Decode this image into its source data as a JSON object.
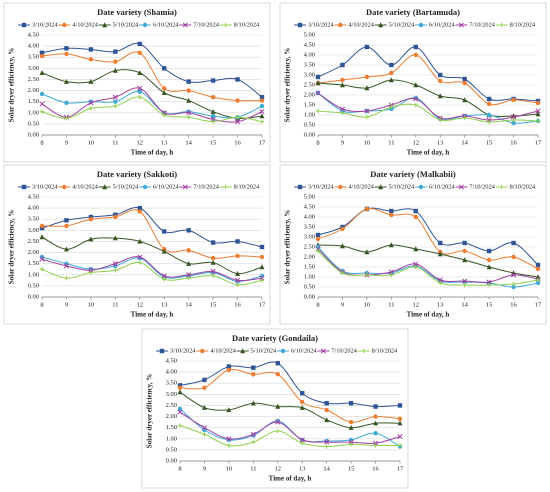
{
  "chart_data": [
    {
      "type": "line",
      "title": "Date variety (Shamia)",
      "x_label": "Time of day, h",
      "y_label": "Solar dryer efficiency, %",
      "x": [
        8,
        9,
        10,
        11,
        12,
        13,
        14,
        15,
        16,
        17
      ],
      "xlim": [
        8,
        17
      ],
      "xticks": [
        8,
        9,
        10,
        11,
        12,
        13,
        14,
        15,
        16,
        17
      ],
      "ylim": [
        0,
        4.5
      ],
      "yticks": [
        {
          "value": 0,
          "label": "0.00"
        },
        {
          "value": 0.5,
          "label": "0.50"
        },
        {
          "value": 1,
          "label": "1.00"
        },
        {
          "value": 1.5,
          "label": "1.50"
        },
        {
          "value": 2,
          "label": "2.00"
        },
        {
          "value": 2.5,
          "label": "2.50"
        },
        {
          "value": 3,
          "label": "3.00"
        },
        {
          "value": 3.5,
          "label": "3.50"
        },
        {
          "value": 4,
          "label": "4.00"
        },
        {
          "value": 4.5,
          "label": "4.50"
        }
      ],
      "grid": true,
      "legend": "top",
      "series": [
        {
          "name": "3/10/2024",
          "color": "#2f5597",
          "values": [
            3.7,
            3.9,
            3.85,
            3.75,
            4.1,
            3.0,
            2.4,
            2.45,
            2.5,
            1.7
          ]
        },
        {
          "name": "4/10/2024",
          "color": "#ed7d31",
          "values": [
            3.55,
            3.65,
            3.4,
            3.3,
            3.7,
            2.1,
            2.0,
            1.7,
            1.55,
            1.55
          ]
        },
        {
          "name": "5/10/2024",
          "color": "#375623",
          "values": [
            2.8,
            2.4,
            2.4,
            2.9,
            2.8,
            1.9,
            1.55,
            1.05,
            0.75,
            0.85
          ]
        },
        {
          "name": "6/10/2024",
          "color": "#3fa9d6",
          "values": [
            1.85,
            1.45,
            1.5,
            1.5,
            1.95,
            1.0,
            1.05,
            0.85,
            0.8,
            1.3
          ]
        },
        {
          "name": "7/10/2024",
          "color": "#a040a0",
          "values": [
            1.4,
            0.8,
            1.45,
            1.7,
            2.1,
            1.0,
            1.0,
            0.7,
            0.6,
            1.05
          ]
        },
        {
          "name": "8/10/2024",
          "color": "#92d050",
          "values": [
            1.05,
            0.75,
            1.2,
            1.3,
            1.7,
            0.9,
            0.8,
            0.6,
            0.8,
            0.6
          ]
        }
      ]
    },
    {
      "type": "line",
      "title": "Date variety (Bartamuda)",
      "x_label": "Time of day, h",
      "y_label": "Solar dryer efficiency, %",
      "x": [
        8,
        9,
        10,
        11,
        12,
        13,
        14,
        15,
        16,
        17
      ],
      "xlim": [
        8,
        17
      ],
      "xticks": [
        8,
        9,
        10,
        11,
        12,
        13,
        14,
        15,
        16,
        17
      ],
      "ylim": [
        0,
        5
      ],
      "yticks": [
        {
          "value": 0,
          "label": "0.00"
        },
        {
          "value": 0.5,
          "label": "0.50"
        },
        {
          "value": 1,
          "label": "1.00"
        },
        {
          "value": 1.5,
          "label": "1.50"
        },
        {
          "value": 2,
          "label": "2.00"
        },
        {
          "value": 2.5,
          "label": "2.50"
        },
        {
          "value": 3,
          "label": "3.00"
        },
        {
          "value": 3.5,
          "label": "3.50"
        },
        {
          "value": 4,
          "label": "4.00"
        },
        {
          "value": 4.5,
          "label": "4.50"
        },
        {
          "value": 5,
          "label": "5.00"
        }
      ],
      "grid": true,
      "legend": "top",
      "series": [
        {
          "name": "3/10/2024",
          "color": "#2f5597",
          "values": [
            2.9,
            3.5,
            4.4,
            3.5,
            4.4,
            3.0,
            2.8,
            1.8,
            1.8,
            1.7
          ]
        },
        {
          "name": "4/10/2024",
          "color": "#ed7d31",
          "values": [
            2.6,
            2.75,
            2.9,
            3.1,
            4.0,
            2.7,
            2.6,
            1.55,
            1.75,
            1.6
          ]
        },
        {
          "name": "5/10/2024",
          "color": "#375623",
          "values": [
            2.6,
            2.5,
            2.35,
            2.75,
            2.5,
            1.95,
            1.75,
            1.0,
            0.95,
            1.05
          ]
        },
        {
          "name": "6/10/2024",
          "color": "#3fa9d6",
          "values": [
            2.1,
            1.2,
            1.2,
            1.3,
            1.85,
            0.8,
            0.95,
            1.0,
            0.6,
            0.7
          ]
        },
        {
          "name": "7/10/2024",
          "color": "#a040a0",
          "values": [
            2.1,
            1.3,
            1.2,
            1.5,
            1.8,
            0.85,
            0.95,
            0.75,
            0.9,
            1.2
          ]
        },
        {
          "name": "8/10/2024",
          "color": "#92d050",
          "values": [
            1.2,
            1.1,
            0.9,
            1.4,
            1.5,
            0.75,
            0.85,
            0.65,
            0.75,
            0.7
          ]
        }
      ]
    },
    {
      "type": "line",
      "title": "Date variety (Sakkoti)",
      "x_label": "Time of day, h",
      "y_label": "Solar dryer efficiency, %",
      "x": [
        8,
        9,
        10,
        11,
        12,
        13,
        14,
        15,
        16,
        17
      ],
      "xlim": [
        8,
        17
      ],
      "xticks": [
        8,
        9,
        10,
        11,
        12,
        13,
        14,
        15,
        16,
        17
      ],
      "ylim": [
        0,
        4.5
      ],
      "yticks": [
        {
          "value": 0,
          "label": "0.00"
        },
        {
          "value": 0.5,
          "label": "0.50"
        },
        {
          "value": 1,
          "label": "1.00"
        },
        {
          "value": 1.5,
          "label": "1.50"
        },
        {
          "value": 2,
          "label": "2.00"
        },
        {
          "value": 2.5,
          "label": "2.50"
        },
        {
          "value": 3,
          "label": "3.00"
        },
        {
          "value": 3.5,
          "label": "3.50"
        },
        {
          "value": 4,
          "label": "4.00"
        },
        {
          "value": 4.5,
          "label": "4.50"
        }
      ],
      "grid": true,
      "legend": "top",
      "series": [
        {
          "name": "3/10/2024",
          "color": "#2f5597",
          "values": [
            3.1,
            3.45,
            3.6,
            3.7,
            4.0,
            2.95,
            3.0,
            2.45,
            2.5,
            2.25
          ]
        },
        {
          "name": "4/10/2024",
          "color": "#ed7d31",
          "values": [
            3.2,
            3.2,
            3.5,
            3.6,
            3.85,
            2.15,
            2.1,
            1.75,
            1.85,
            1.8
          ]
        },
        {
          "name": "5/10/2024",
          "color": "#375623",
          "values": [
            2.7,
            2.15,
            2.6,
            2.65,
            2.5,
            2.05,
            1.5,
            1.55,
            1.05,
            1.35
          ]
        },
        {
          "name": "6/10/2024",
          "color": "#3fa9d6",
          "values": [
            1.8,
            1.5,
            1.25,
            1.4,
            1.75,
            0.9,
            0.95,
            1.1,
            0.7,
            0.95
          ]
        },
        {
          "name": "7/10/2024",
          "color": "#a040a0",
          "values": [
            1.7,
            1.4,
            1.2,
            1.5,
            1.8,
            0.95,
            1.0,
            1.15,
            0.75,
            0.85
          ]
        },
        {
          "name": "8/10/2024",
          "color": "#92d050",
          "values": [
            1.25,
            0.85,
            1.1,
            1.2,
            1.55,
            0.8,
            0.85,
            0.95,
            0.55,
            0.75
          ]
        }
      ]
    },
    {
      "type": "line",
      "title": "Date variety (Malkabii)",
      "x_label": "Time of day, h",
      "y_label": "Solar dryer efficiency, %",
      "x": [
        8,
        9,
        10,
        11,
        12,
        13,
        14,
        15,
        16,
        17
      ],
      "xlim": [
        8,
        17
      ],
      "xticks": [
        8,
        9,
        10,
        11,
        12,
        13,
        14,
        15,
        16,
        17
      ],
      "ylim": [
        0,
        5
      ],
      "yticks": [
        {
          "value": 0,
          "label": "0.00"
        },
        {
          "value": 0.5,
          "label": "0.50"
        },
        {
          "value": 1,
          "label": "1.00"
        },
        {
          "value": 1.5,
          "label": "1.50"
        },
        {
          "value": 2,
          "label": "2.00"
        },
        {
          "value": 2.5,
          "label": "2.50"
        },
        {
          "value": 3,
          "label": "3.00"
        },
        {
          "value": 3.5,
          "label": "3.50"
        },
        {
          "value": 4,
          "label": "4.00"
        },
        {
          "value": 4.5,
          "label": "4.50"
        },
        {
          "value": 5,
          "label": "5.00"
        }
      ],
      "grid": true,
      "legend": "top",
      "series": [
        {
          "name": "3/10/2024",
          "color": "#2f5597",
          "values": [
            3.1,
            3.5,
            4.4,
            4.3,
            4.3,
            2.7,
            2.7,
            2.3,
            2.7,
            1.6
          ]
        },
        {
          "name": "4/10/2024",
          "color": "#ed7d31",
          "values": [
            2.9,
            3.4,
            4.4,
            4.1,
            4.0,
            2.25,
            2.3,
            1.85,
            2.0,
            1.4
          ]
        },
        {
          "name": "5/10/2024",
          "color": "#375623",
          "values": [
            2.6,
            2.55,
            2.25,
            2.6,
            2.4,
            2.15,
            1.85,
            1.5,
            1.2,
            1.0
          ]
        },
        {
          "name": "6/10/2024",
          "color": "#3fa9d6",
          "values": [
            2.5,
            1.3,
            1.2,
            1.2,
            1.55,
            0.8,
            0.75,
            0.7,
            0.5,
            0.7
          ]
        },
        {
          "name": "7/10/2024",
          "color": "#a040a0",
          "values": [
            2.4,
            1.25,
            1.1,
            1.25,
            1.65,
            0.85,
            0.8,
            0.75,
            1.1,
            0.9
          ]
        },
        {
          "name": "8/10/2024",
          "color": "#92d050",
          "values": [
            2.3,
            1.2,
            1.1,
            1.1,
            1.5,
            0.7,
            0.6,
            0.6,
            0.65,
            0.85
          ]
        }
      ]
    },
    {
      "type": "line",
      "title": "Date variety (Gondaila)",
      "x_label": "Time of day, h",
      "y_label": "Solar dryer efficiency, %",
      "x": [
        8,
        9,
        10,
        11,
        12,
        13,
        14,
        15,
        16,
        17
      ],
      "xlim": [
        8,
        17
      ],
      "xticks": [
        8,
        9,
        10,
        11,
        12,
        13,
        14,
        15,
        16,
        17
      ],
      "ylim": [
        0,
        4.5
      ],
      "yticks": [
        {
          "value": 0,
          "label": "0.00"
        },
        {
          "value": 0.5,
          "label": "0.50"
        },
        {
          "value": 1,
          "label": "1.00"
        },
        {
          "value": 1.5,
          "label": "1.50"
        },
        {
          "value": 2,
          "label": "2.00"
        },
        {
          "value": 2.5,
          "label": "2.50"
        },
        {
          "value": 3,
          "label": "3.00"
        },
        {
          "value": 3.5,
          "label": "3.50"
        },
        {
          "value": 4,
          "label": "4.00"
        },
        {
          "value": 4.5,
          "label": "4.50"
        }
      ],
      "grid": true,
      "legend": "top",
      "series": [
        {
          "name": "3/10/2024",
          "color": "#2f5597",
          "values": [
            3.4,
            3.65,
            4.25,
            4.2,
            4.4,
            3.05,
            2.6,
            2.6,
            2.45,
            2.5
          ]
        },
        {
          "name": "4/10/2024",
          "color": "#ed7d31",
          "values": [
            3.3,
            3.3,
            4.1,
            3.9,
            3.9,
            2.65,
            2.3,
            1.75,
            2.0,
            1.9
          ]
        },
        {
          "name": "5/10/2024",
          "color": "#375623",
          "values": [
            3.1,
            2.4,
            2.3,
            2.6,
            2.45,
            2.4,
            1.85,
            1.5,
            1.7,
            1.7
          ]
        },
        {
          "name": "6/10/2024",
          "color": "#3fa9d6",
          "values": [
            2.35,
            1.4,
            0.95,
            1.15,
            1.8,
            0.95,
            0.9,
            0.95,
            1.25,
            0.65
          ]
        },
        {
          "name": "7/10/2024",
          "color": "#a040a0",
          "values": [
            2.2,
            1.5,
            1.0,
            1.2,
            1.75,
            0.95,
            0.85,
            0.85,
            0.8,
            1.1
          ]
        },
        {
          "name": "8/10/2024",
          "color": "#92d050",
          "values": [
            1.6,
            1.2,
            0.7,
            0.85,
            1.35,
            0.8,
            0.65,
            0.75,
            0.7,
            0.7
          ]
        }
      ]
    }
  ]
}
